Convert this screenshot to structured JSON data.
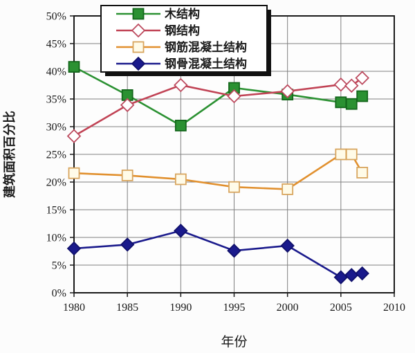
{
  "page": {
    "background": "#fcfcfc"
  },
  "chart_data": {
    "type": "line",
    "title": "",
    "xlabel": "年份",
    "ylabel": "建筑面积百分比",
    "xlim": [
      1980,
      2010
    ],
    "ylim": [
      0,
      50
    ],
    "xticks": [
      1980,
      1985,
      1990,
      1995,
      2000,
      2005,
      2010
    ],
    "yticks": [
      0,
      5,
      10,
      15,
      20,
      25,
      30,
      35,
      40,
      45,
      50
    ],
    "ytick_suffix": "%",
    "grid": true,
    "legend_position": "top-center-inside",
    "x": [
      1980,
      1985,
      1990,
      1995,
      2000,
      2005,
      2006,
      2007
    ],
    "series": [
      {
        "name": "木结构",
        "values": [
          40.8,
          35.7,
          30.2,
          37.0,
          35.8,
          34.4,
          34.1,
          35.5
        ],
        "line_color": "#2b9132",
        "marker": {
          "shape": "square",
          "fill": "#2b9132",
          "stroke": "#13661b"
        }
      },
      {
        "name": "钢结构",
        "values": [
          28.3,
          33.9,
          37.5,
          35.5,
          36.4,
          37.6,
          37.4,
          38.8
        ],
        "line_color": "#c14355",
        "marker": {
          "shape": "diamond",
          "fill": "#ffffff",
          "stroke": "#bc4a5e"
        }
      },
      {
        "name": "钢筋混凝土结构",
        "values": [
          21.6,
          21.2,
          20.5,
          19.1,
          18.7,
          25.0,
          25.0,
          21.7
        ],
        "line_color": "#e1902e",
        "marker": {
          "shape": "square",
          "fill": "#fffbe8",
          "stroke": "#d8a55e"
        }
      },
      {
        "name": "钢骨混凝土结构",
        "values": [
          8.0,
          8.7,
          11.2,
          7.6,
          8.5,
          2.8,
          3.2,
          3.5
        ],
        "line_color": "#1a1a8c",
        "marker": {
          "shape": "diamond",
          "fill": "#1a1a8c",
          "stroke": "#10106b"
        }
      }
    ],
    "colors": {
      "grid": "#7f7f7f",
      "axis": "#1a1a1a",
      "text": "#1a1a1a",
      "plot_bg": "#fdfdfd",
      "legend_bg": "#ffffff",
      "legend_border": "#111111",
      "legend_shadow": "#111111"
    }
  }
}
